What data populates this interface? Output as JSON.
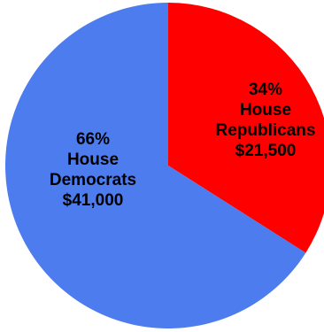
{
  "chart_data": {
    "type": "pie",
    "title": "",
    "slices": [
      {
        "name": "House Republicans",
        "percent": 34,
        "amount": 21500,
        "color": "#ff0000",
        "label_lines": [
          "34%",
          "House",
          "Republicans",
          "$21,500"
        ]
      },
      {
        "name": "House Democrats",
        "percent": 66,
        "amount": 41000,
        "color": "#4d7cef",
        "label_lines": [
          "66%",
          "House",
          "Democrats",
          "$41,000"
        ]
      }
    ],
    "legend": "none"
  }
}
